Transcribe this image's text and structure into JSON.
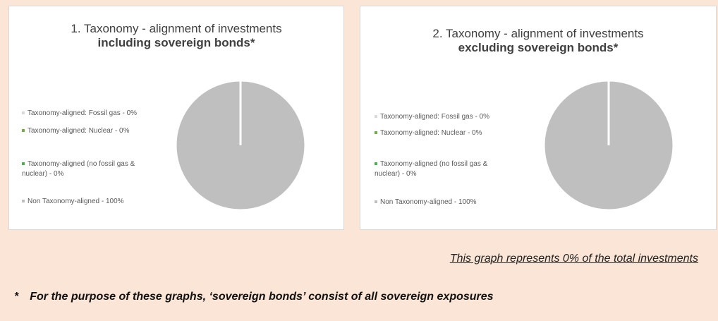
{
  "chart_data": [
    {
      "type": "pie",
      "title": "1. Taxonomy - alignment of investments",
      "subtitle": "including sovereign bonds*",
      "categories": [
        "Taxonomy-aligned: Fossil gas - 0%",
        "Taxonomy-aligned: Nuclear - 0%",
        "Taxonomy-aligned (no fossil gas & nuclear) - 0%",
        "Non Taxonomy-aligned - 100%"
      ],
      "values": [
        0,
        0,
        0,
        100
      ],
      "colors": [
        "#d9d9d9",
        "#70ad47",
        "#4caf50",
        "#bfbfbf"
      ]
    },
    {
      "type": "pie",
      "title": "2. Taxonomy - alignment of investments",
      "subtitle": "excluding sovereign bonds*",
      "categories": [
        "Taxonomy-aligned: Fossil gas - 0%",
        "Taxonomy-aligned: Nuclear - 0%",
        "Taxonomy-aligned (no fossil gas & nuclear) - 0%",
        "Non Taxonomy-aligned - 100%"
      ],
      "values": [
        0,
        0,
        0,
        100
      ],
      "colors": [
        "#d9d9d9",
        "#70ad47",
        "#4caf50",
        "#bfbfbf"
      ]
    }
  ],
  "note": "This graph represents 0% of the total investments",
  "footnote_marker": "*",
  "footnote": "For the purpose of these graphs, ‘sovereign bonds’ consist of all sovereign exposures"
}
